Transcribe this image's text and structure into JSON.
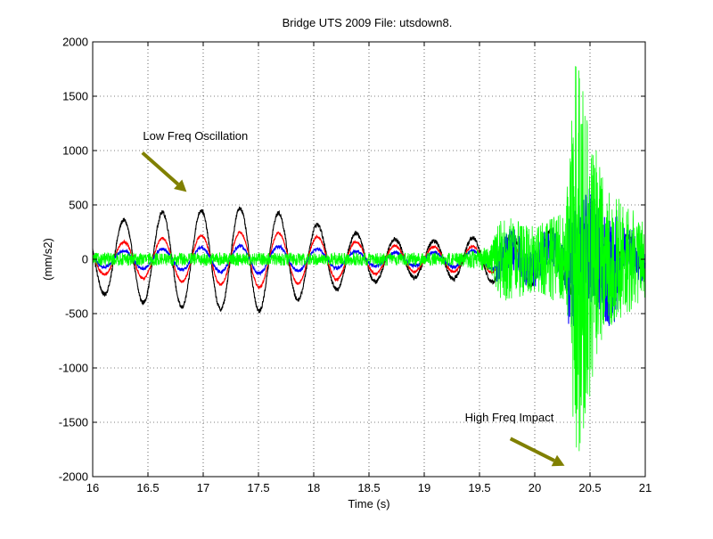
{
  "chart_data": {
    "type": "line",
    "title": "Bridge UTS 2009 File: utsdown8.",
    "xlabel": "Time (s)",
    "ylabel": "(mm/s2)",
    "xlim": [
      16,
      21
    ],
    "ylim": [
      -2000,
      2000
    ],
    "x_ticks": [
      16,
      16.5,
      17,
      17.5,
      18,
      18.5,
      19,
      19.5,
      20,
      20.5,
      21
    ],
    "x_tick_labels": [
      "16",
      "16.5",
      "17",
      "17.5",
      "18",
      "18.5",
      "19",
      "19.5",
      "20",
      "20.5",
      "21"
    ],
    "y_ticks": [
      -2000,
      -1500,
      -1000,
      -500,
      0,
      500,
      1000,
      1500,
      2000
    ],
    "y_tick_labels": [
      "-2000",
      "-1500",
      "-1000",
      "-500",
      "0",
      "500",
      "1000",
      "1500",
      "2000"
    ],
    "grid": true,
    "annotations": [
      {
        "text": "Low Freq Oscillation",
        "x": 16.93,
        "y": 1130,
        "arrow_from": [
          16.45,
          980
        ],
        "arrow_to": [
          16.85,
          620
        ]
      },
      {
        "text": "High Freq Impact",
        "x": 19.77,
        "y": -1460,
        "arrow_from": [
          19.78,
          -1650
        ],
        "arrow_to": [
          20.27,
          -1900
        ]
      }
    ],
    "arrow_color": "#808000",
    "series": [
      {
        "color": "#000000",
        "type": "low-freq",
        "freq_hz": 2.85,
        "phase_x": 16.28,
        "envelope": [
          [
            16.0,
            300
          ],
          [
            16.6,
            430
          ],
          [
            17.5,
            480
          ],
          [
            18.1,
            300
          ],
          [
            18.6,
            200
          ],
          [
            19.0,
            160
          ],
          [
            19.5,
            200
          ],
          [
            20.0,
            240
          ],
          [
            20.3,
            280
          ],
          [
            20.5,
            250
          ],
          [
            21.0,
            200
          ]
        ],
        "noise": 20,
        "burst_amp": 50
      },
      {
        "color": "#ff0000",
        "type": "low-freq",
        "freq_hz": 2.85,
        "phase_x": 16.28,
        "envelope": [
          [
            16.0,
            130
          ],
          [
            16.6,
            190
          ],
          [
            17.5,
            260
          ],
          [
            18.1,
            200
          ],
          [
            18.6,
            130
          ],
          [
            19.0,
            110
          ],
          [
            19.5,
            120
          ],
          [
            20.0,
            130
          ],
          [
            20.5,
            150
          ],
          [
            21.0,
            120
          ]
        ],
        "noise": 12,
        "burst_amp": 60
      },
      {
        "color": "#0000ff",
        "type": "low-freq",
        "freq_hz": 2.85,
        "phase_x": 16.28,
        "envelope": [
          [
            16.0,
            70
          ],
          [
            16.6,
            90
          ],
          [
            17.5,
            130
          ],
          [
            18.1,
            90
          ],
          [
            18.6,
            60
          ],
          [
            19.0,
            60
          ],
          [
            19.5,
            80
          ],
          [
            20.0,
            110
          ],
          [
            20.5,
            130
          ],
          [
            21.0,
            110
          ]
        ],
        "noise": 15,
        "burst_amp": 520
      },
      {
        "color": "#00ff00",
        "type": "high-freq",
        "envelope": [
          [
            16.0,
            60
          ],
          [
            19.3,
            60
          ],
          [
            19.6,
            120
          ],
          [
            19.7,
            420
          ],
          [
            20.0,
            300
          ],
          [
            20.28,
            450
          ],
          [
            20.37,
            1950
          ],
          [
            20.5,
            1300
          ],
          [
            20.65,
            650
          ],
          [
            21.0,
            380
          ]
        ],
        "noise": 0,
        "burst_amp": 0
      }
    ]
  }
}
